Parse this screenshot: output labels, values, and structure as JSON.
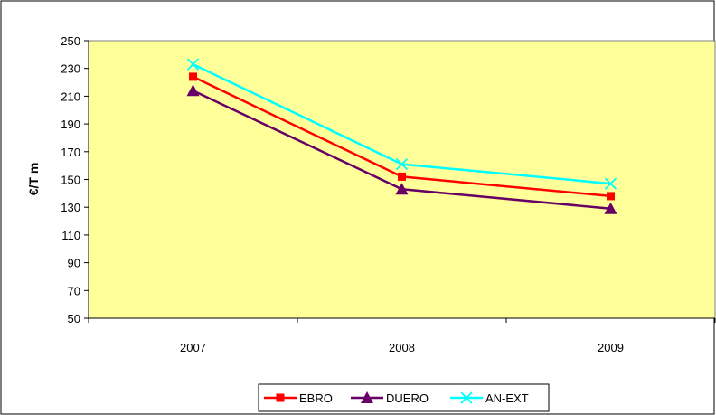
{
  "chart_data": {
    "type": "line",
    "categories": [
      "2007",
      "2008",
      "2009"
    ],
    "series": [
      {
        "name": "EBRO",
        "values": [
          224,
          152,
          138
        ],
        "color": "#ff0000",
        "marker": "square"
      },
      {
        "name": "DUERO",
        "values": [
          214,
          143,
          129
        ],
        "color": "#660066",
        "marker": "triangle"
      },
      {
        "name": "AN-EXT",
        "values": [
          233,
          161,
          147
        ],
        "color": "#00ffff",
        "marker": "x"
      }
    ],
    "ylabel": "€/T m",
    "ylim": [
      50,
      250
    ],
    "yticks": [
      50,
      70,
      90,
      110,
      130,
      150,
      170,
      190,
      210,
      230,
      250
    ],
    "plot_background": "#ffff99",
    "legend_position": "bottom",
    "grid": false
  }
}
